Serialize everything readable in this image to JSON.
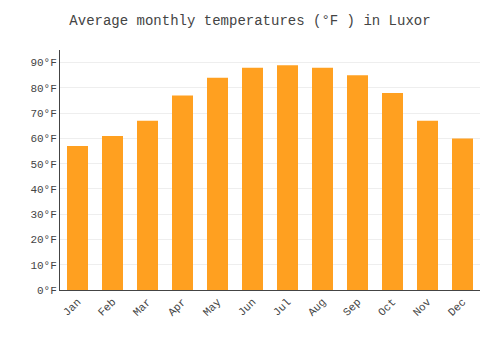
{
  "chart_data": {
    "type": "bar",
    "title": "Average monthly temperatures (°F ) in Luxor",
    "categories": [
      "Jan",
      "Feb",
      "Mar",
      "Apr",
      "May",
      "Jun",
      "Jul",
      "Aug",
      "Sep",
      "Oct",
      "Nov",
      "Dec"
    ],
    "values": [
      57,
      61,
      67,
      77,
      84,
      88,
      89,
      88,
      85,
      78,
      67,
      60
    ],
    "color": "#FFA020",
    "ylim": [
      0,
      95
    ],
    "yticks": [
      {
        "value": 0,
        "label": "0°F"
      },
      {
        "value": 10,
        "label": "10°F"
      },
      {
        "value": 20,
        "label": "20°F"
      },
      {
        "value": 30,
        "label": "30°F"
      },
      {
        "value": 40,
        "label": "40°F"
      },
      {
        "value": 50,
        "label": "50°F"
      },
      {
        "value": 60,
        "label": "60°F"
      },
      {
        "value": 70,
        "label": "70°F"
      },
      {
        "value": 80,
        "label": "80°F"
      },
      {
        "value": 90,
        "label": "90°F"
      }
    ],
    "grid": true
  }
}
